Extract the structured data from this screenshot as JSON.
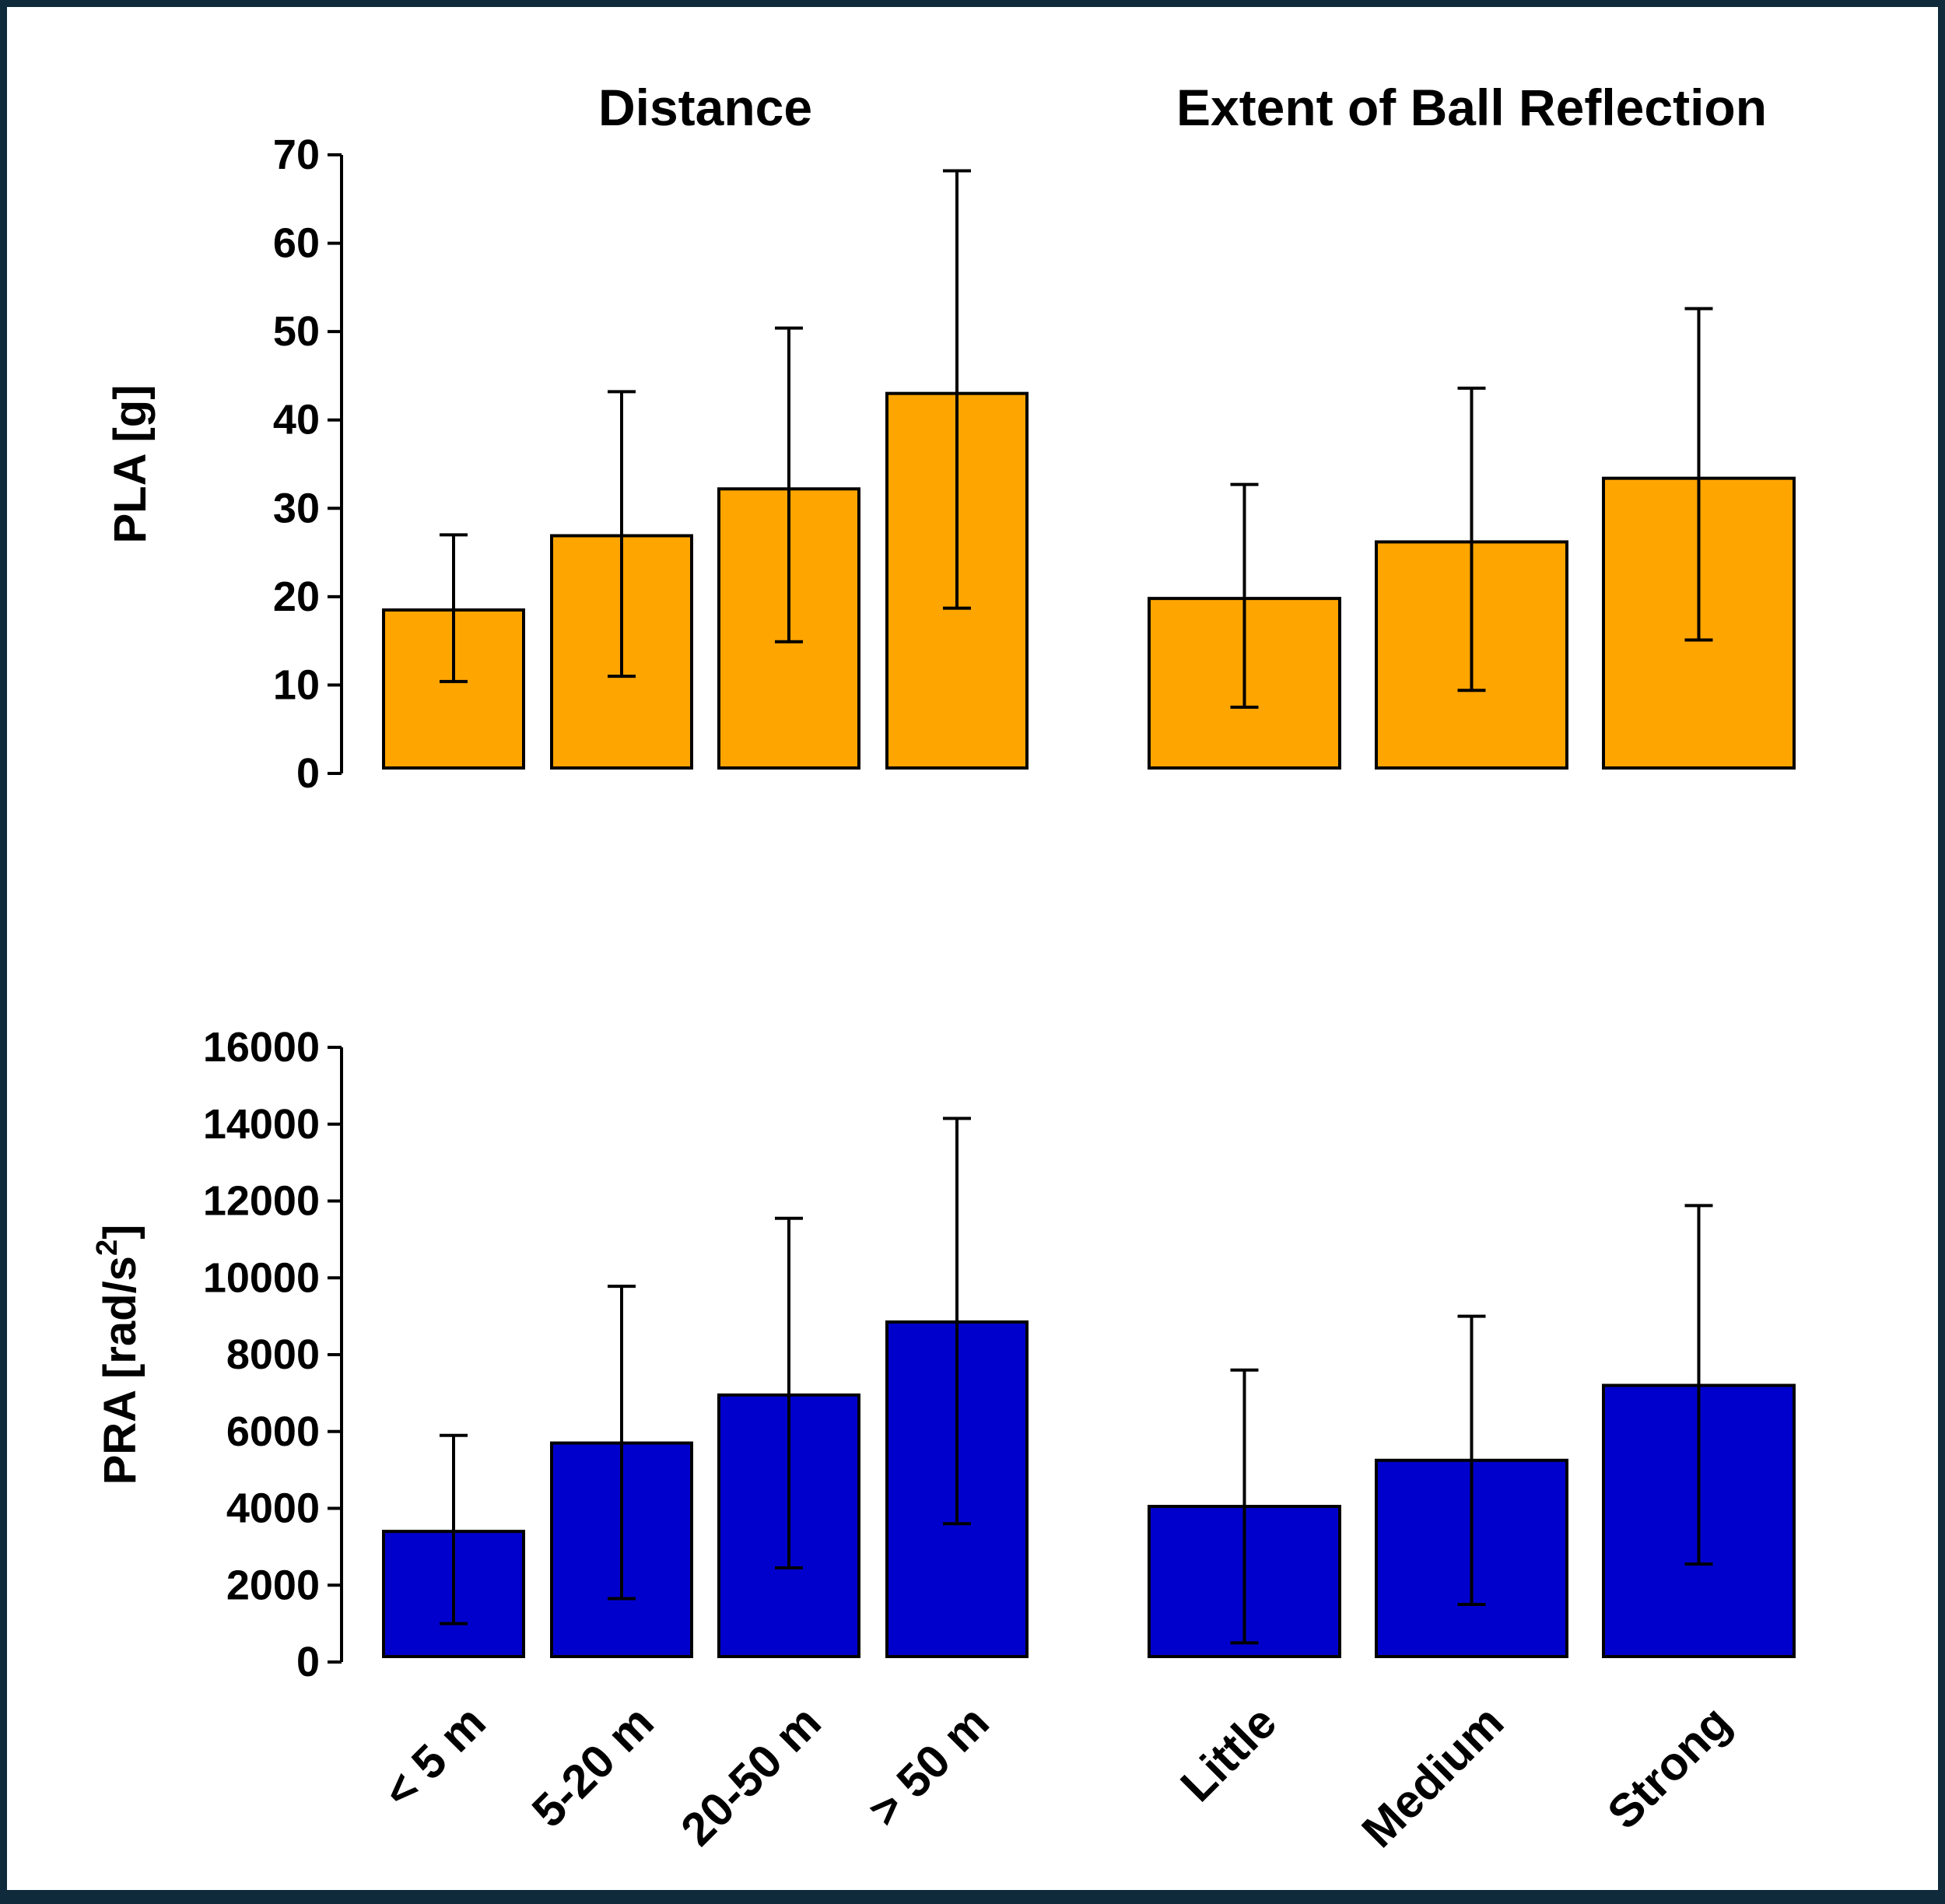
{
  "chart_data": [
    {
      "type": "bar",
      "panel": "top",
      "ylabel": "PLA [g]",
      "ylim": [
        0,
        70
      ],
      "yticks": [
        0,
        10,
        20,
        30,
        40,
        50,
        60,
        70
      ],
      "bar_color": "#FFA500",
      "groups": [
        {
          "title": "Distance",
          "categories": [
            "< 5 m",
            "5-20 m",
            "20-50 m",
            "> 50 m"
          ],
          "values": [
            18.5,
            26.9,
            32.2,
            43.0
          ],
          "error_low": [
            10.4,
            11.0,
            14.9,
            18.7
          ],
          "error_high": [
            27.0,
            43.2,
            50.4,
            68.2
          ]
        },
        {
          "title": "Extent of Ball Reflection",
          "categories": [
            "Little",
            "Medium",
            "Strong"
          ],
          "values": [
            19.8,
            26.2,
            33.4
          ],
          "error_low": [
            7.5,
            9.4,
            15.1
          ],
          "error_high": [
            32.7,
            43.6,
            52.6
          ]
        }
      ]
    },
    {
      "type": "bar",
      "panel": "bottom",
      "ylabel": "PRA [rad/s²]",
      "ylim": [
        0,
        16000
      ],
      "yticks": [
        0,
        2000,
        4000,
        6000,
        8000,
        10000,
        12000,
        14000,
        16000
      ],
      "bar_color": "#0000CD",
      "groups": [
        {
          "title": "",
          "categories": [
            "< 5 m",
            "5-20 m",
            "20-50 m",
            "> 50 m"
          ],
          "values": [
            3400,
            5700,
            6950,
            8850
          ],
          "error_low": [
            1000,
            1650,
            2450,
            3600
          ],
          "error_high": [
            5900,
            9780,
            11550,
            14150
          ]
        },
        {
          "title": "",
          "categories": [
            "Little",
            "Medium",
            "Strong"
          ],
          "values": [
            4050,
            5250,
            7200
          ],
          "error_low": [
            500,
            1500,
            2550
          ],
          "error_high": [
            7600,
            9000,
            11880
          ]
        }
      ]
    }
  ]
}
